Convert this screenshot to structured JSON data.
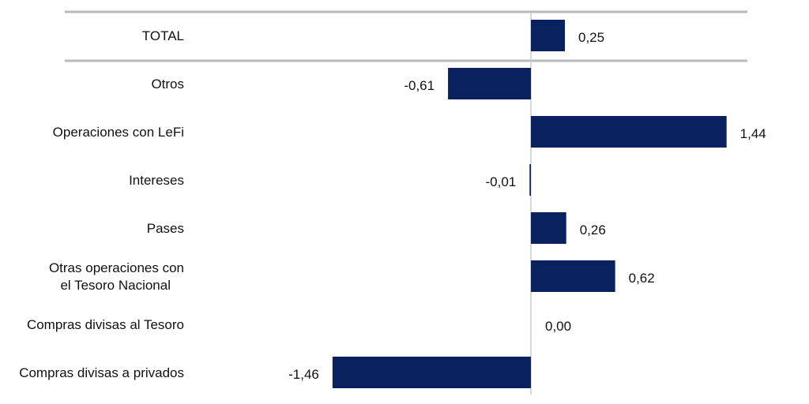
{
  "chart_data": {
    "type": "bar",
    "orientation": "horizontal",
    "categories": [
      "TOTAL",
      "Otros",
      "Operaciones con LeFi",
      "Intereses",
      "Pases",
      "Otras operaciones con el Tesoro Nacional",
      "Compras divisas al Tesoro",
      "Compras divisas a privados"
    ],
    "category_lines": [
      [
        "TOTAL"
      ],
      [
        "Otros"
      ],
      [
        "Operaciones con LeFi"
      ],
      [
        "Intereses"
      ],
      [
        "Pases"
      ],
      [
        "Otras operaciones con",
        "el Tesoro Nacional"
      ],
      [
        "Compras divisas al Tesoro"
      ],
      [
        "Compras divisas a privados"
      ]
    ],
    "values": [
      0.25,
      -0.61,
      1.44,
      -0.01,
      0.26,
      0.62,
      0.0,
      -1.46
    ],
    "value_labels": [
      "0,25",
      "-0,61",
      "1,44",
      "-0,01",
      "0,26",
      "0,62",
      "0,00",
      "-1,46"
    ],
    "bar_color": "#0a2160",
    "axis_color": "#c8ccd4",
    "separator_color": "#b9b9b9",
    "xlim": [
      -1.5,
      1.5
    ],
    "grid": false,
    "legend": "none"
  }
}
